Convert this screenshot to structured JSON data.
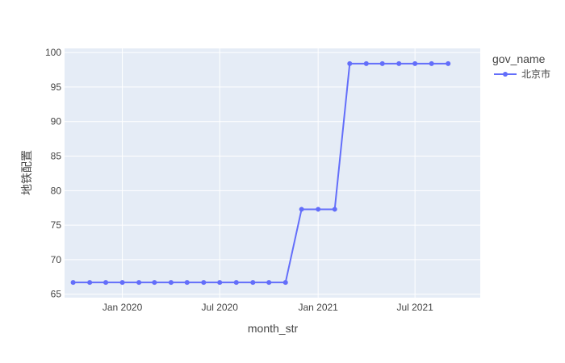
{
  "chart_data": {
    "type": "line",
    "xlabel": "month_str",
    "ylabel": "地铁配置",
    "x_ticks": [
      {
        "date": "2020-01-01",
        "label": "Jan 2020"
      },
      {
        "date": "2020-07-01",
        "label": "Jul 2020"
      },
      {
        "date": "2021-01-01",
        "label": "Jan 2021"
      },
      {
        "date": "2021-07-01",
        "label": "Jul 2021"
      }
    ],
    "y_ticks": [
      65,
      70,
      75,
      80,
      85,
      90,
      95,
      100
    ],
    "xlim": [
      "2019-09-15",
      "2021-10-31"
    ],
    "ylim": [
      64.5,
      100.6
    ],
    "grid": true,
    "legend": {
      "title": "gov_name",
      "position": "right-top"
    },
    "series": [
      {
        "name": "北京市",
        "color": "#636efa",
        "x": [
          "2019-10-01",
          "2019-11-01",
          "2019-12-01",
          "2020-01-01",
          "2020-02-01",
          "2020-03-01",
          "2020-04-01",
          "2020-05-01",
          "2020-06-01",
          "2020-07-01",
          "2020-08-01",
          "2020-09-01",
          "2020-10-01",
          "2020-11-01",
          "2020-12-01",
          "2021-01-01",
          "2021-02-01",
          "2021-03-01",
          "2021-04-01",
          "2021-05-01",
          "2021-06-01",
          "2021-07-01",
          "2021-08-01",
          "2021-09-01"
        ],
        "y": [
          66.7,
          66.7,
          66.7,
          66.7,
          66.7,
          66.7,
          66.7,
          66.7,
          66.7,
          66.7,
          66.7,
          66.7,
          66.7,
          66.7,
          77.3,
          77.3,
          77.3,
          98.4,
          98.4,
          98.4,
          98.4,
          98.4,
          98.4,
          98.4
        ]
      }
    ]
  }
}
